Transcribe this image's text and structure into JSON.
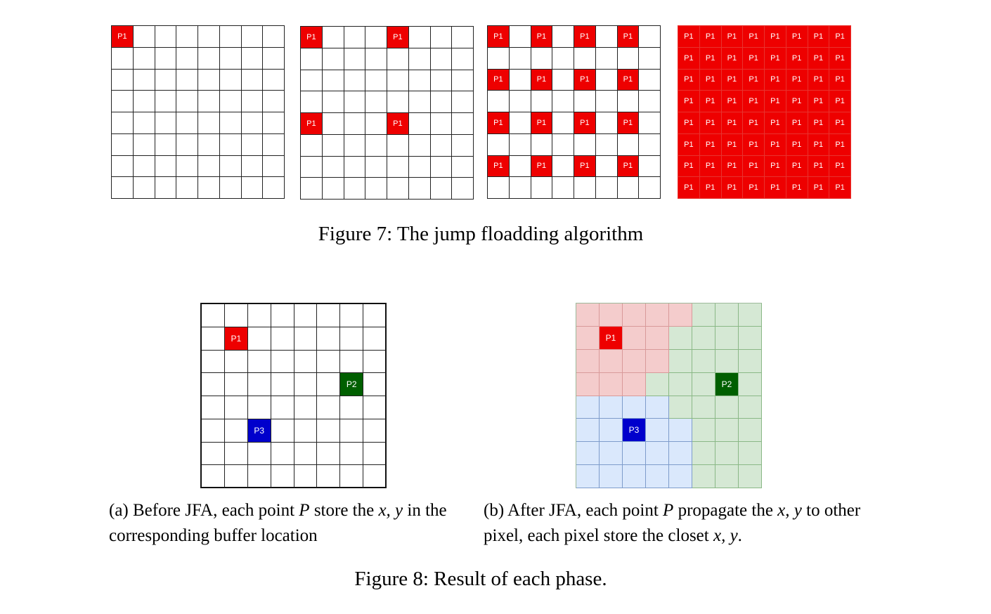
{
  "colors": {
    "p1": "#ee0000",
    "p2": "#005f00",
    "p3": "#0000cc",
    "region_p1": "#f4cccc",
    "region_p2": "#d5e8d4",
    "region_p3": "#dae8fc",
    "grid_line": "#222222"
  },
  "figure7": {
    "caption": "Figure 7: The jump floadding algorithm",
    "panels": [
      {
        "size": 8,
        "label": "P1",
        "filled": "cells",
        "cells": [
          [
            0,
            0
          ]
        ]
      },
      {
        "size": 8,
        "label": "P1",
        "filled": "cells",
        "cells": [
          [
            0,
            0
          ],
          [
            0,
            4
          ],
          [
            4,
            0
          ],
          [
            4,
            4
          ]
        ]
      },
      {
        "size": 8,
        "label": "P1",
        "filled": "cells",
        "cells": [
          [
            0,
            0
          ],
          [
            0,
            2
          ],
          [
            0,
            4
          ],
          [
            0,
            6
          ],
          [
            2,
            0
          ],
          [
            2,
            2
          ],
          [
            2,
            4
          ],
          [
            2,
            6
          ],
          [
            4,
            0
          ],
          [
            4,
            2
          ],
          [
            4,
            4
          ],
          [
            4,
            6
          ],
          [
            6,
            0
          ],
          [
            6,
            2
          ],
          [
            6,
            4
          ],
          [
            6,
            6
          ]
        ]
      },
      {
        "size": 8,
        "label": "P1",
        "filled": "all"
      }
    ]
  },
  "figure8": {
    "caption": "Figure 8: Result of each phase.",
    "subfig_a": {
      "caption_parts": [
        "(a) Before JFA, each point ",
        "P",
        " store the ",
        "x, y",
        " in the corresponding buffer location"
      ],
      "size": 8,
      "points": [
        {
          "label": "P1",
          "row": 1,
          "col": 1,
          "color_key": "p1"
        },
        {
          "label": "P2",
          "row": 3,
          "col": 6,
          "color_key": "p2"
        },
        {
          "label": "P3",
          "row": 5,
          "col": 2,
          "color_key": "p3"
        }
      ]
    },
    "subfig_b": {
      "caption_parts": [
        "(b) After JFA, each point ",
        "P",
        " propagate the ",
        "x, y",
        " to other pixel, each pixel store the closet ",
        "x, y",
        "."
      ],
      "size": 8,
      "regions": [
        "RRRRRGGG",
        "RRRRGGGG",
        "RRRRGGGG",
        "RRRGGGGG",
        "BBBBGGGG",
        "BBBBBGGG",
        "BBBBBGGG",
        "BBBBBGGG"
      ],
      "points": [
        {
          "label": "P1",
          "row": 1,
          "col": 1,
          "color_key": "p1"
        },
        {
          "label": "P2",
          "row": 3,
          "col": 6,
          "color_key": "p2"
        },
        {
          "label": "P3",
          "row": 5,
          "col": 2,
          "color_key": "p3"
        }
      ]
    }
  }
}
